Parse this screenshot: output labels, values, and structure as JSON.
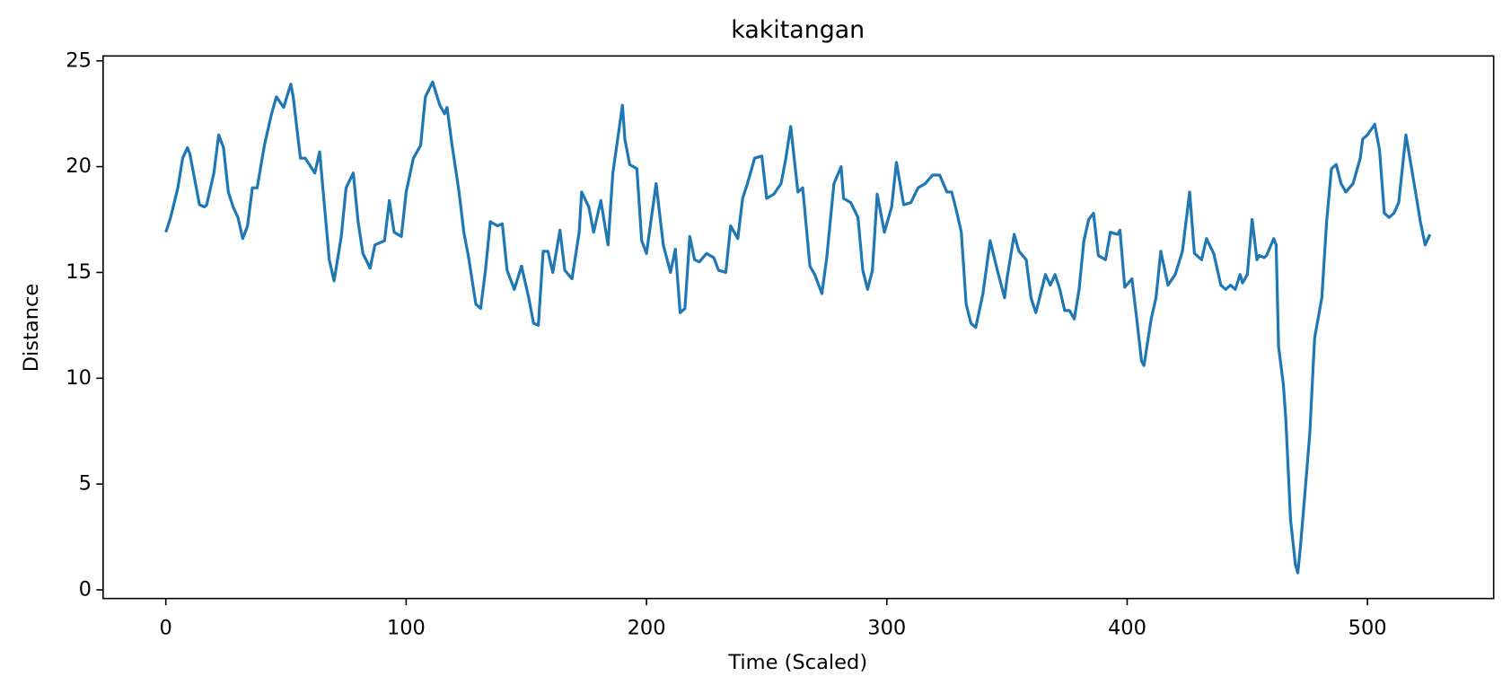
{
  "chart_data": {
    "type": "line",
    "title": "kakitangan",
    "x_label": "Time (Scaled)",
    "y_label": "Distance",
    "color": "#1f77b4",
    "x": [
      0,
      2,
      5,
      7,
      9,
      10,
      12,
      14,
      16,
      17,
      20,
      22,
      24,
      26,
      28,
      30,
      32,
      34,
      36,
      38,
      41,
      44,
      46,
      49,
      52,
      53,
      56,
      58,
      62,
      64,
      68,
      70,
      73,
      75,
      78,
      80,
      82,
      85,
      87,
      91,
      93,
      95,
      98,
      100,
      103,
      106,
      108,
      111,
      114,
      116,
      117,
      119,
      122,
      124,
      126,
      129,
      131,
      133,
      135,
      138,
      140,
      142,
      145,
      148,
      151,
      153,
      155,
      157,
      159,
      161,
      164,
      166,
      169,
      172,
      173,
      176,
      178,
      181,
      184,
      186,
      190,
      191,
      193,
      196,
      198,
      200,
      204,
      207,
      210,
      212,
      214,
      216,
      218,
      220,
      222,
      225,
      228,
      230,
      233,
      235,
      238,
      240,
      242,
      245,
      248,
      250,
      253,
      256,
      258,
      260,
      263,
      265,
      268,
      270,
      273,
      275,
      278,
      281,
      282,
      285,
      288,
      290,
      292,
      294,
      296,
      299,
      302,
      304,
      307,
      310,
      313,
      316,
      319,
      322,
      325,
      327,
      329,
      331,
      333,
      335,
      337,
      340,
      343,
      346,
      349,
      350,
      353,
      355,
      358,
      360,
      362,
      366,
      368,
      370,
      372,
      374,
      376,
      378,
      380,
      382,
      384,
      386,
      388,
      391,
      393,
      396,
      397,
      399,
      402,
      404,
      406,
      407,
      410,
      412,
      414,
      417,
      420,
      423,
      426,
      428,
      431,
      433,
      436,
      439,
      441,
      443,
      445,
      447,
      448,
      450,
      452,
      454,
      455,
      457,
      458,
      461,
      462,
      463,
      465,
      466,
      468,
      470,
      471,
      472,
      474,
      476,
      478,
      481,
      483,
      485,
      487,
      489,
      491,
      494,
      497,
      498,
      500,
      503,
      505,
      507,
      509,
      511,
      513,
      516,
      520,
      522,
      524,
      526
    ],
    "values": [
      16.9,
      17.6,
      19.0,
      20.4,
      20.9,
      20.6,
      19.4,
      18.2,
      18.1,
      18.2,
      19.7,
      21.5,
      20.9,
      18.8,
      18.1,
      17.6,
      16.6,
      17.2,
      19.0,
      19.0,
      21.0,
      22.5,
      23.3,
      22.8,
      23.9,
      23.3,
      20.4,
      20.4,
      19.7,
      20.7,
      15.6,
      14.6,
      16.7,
      19.0,
      19.7,
      17.4,
      15.9,
      15.2,
      16.3,
      16.5,
      18.4,
      16.9,
      16.7,
      18.8,
      20.4,
      21.0,
      23.3,
      24.0,
      22.9,
      22.5,
      22.8,
      21.1,
      18.8,
      16.9,
      15.7,
      13.5,
      13.3,
      15.1,
      17.4,
      17.2,
      17.3,
      15.1,
      14.2,
      15.3,
      13.8,
      12.6,
      12.5,
      16.0,
      16.0,
      15.0,
      17.0,
      15.1,
      14.7,
      16.9,
      18.8,
      18.1,
      16.9,
      18.4,
      16.3,
      19.7,
      22.9,
      21.3,
      20.1,
      19.9,
      16.5,
      15.9,
      19.2,
      16.3,
      15.0,
      16.1,
      13.1,
      13.3,
      16.7,
      15.6,
      15.5,
      15.9,
      15.7,
      15.1,
      15.0,
      17.2,
      16.6,
      18.5,
      19.2,
      20.4,
      20.5,
      18.5,
      18.7,
      19.2,
      20.4,
      21.9,
      18.8,
      19.0,
      15.3,
      14.9,
      14.0,
      15.7,
      19.2,
      20.0,
      18.5,
      18.3,
      17.6,
      15.1,
      14.2,
      15.1,
      18.7,
      16.9,
      18.1,
      20.2,
      18.2,
      18.3,
      19.0,
      19.2,
      19.6,
      19.6,
      18.8,
      18.8,
      17.9,
      16.9,
      13.5,
      12.6,
      12.4,
      14.0,
      16.5,
      15.1,
      13.8,
      14.7,
      16.8,
      16.0,
      15.6,
      13.8,
      13.1,
      14.9,
      14.4,
      14.9,
      14.2,
      13.2,
      13.2,
      12.8,
      14.2,
      16.5,
      17.5,
      17.8,
      15.8,
      15.6,
      16.9,
      16.8,
      17.0,
      14.3,
      14.7,
      12.8,
      10.8,
      10.6,
      12.8,
      13.8,
      16.0,
      14.4,
      14.9,
      16.0,
      18.8,
      15.9,
      15.6,
      16.6,
      15.9,
      14.4,
      14.2,
      14.4,
      14.2,
      14.9,
      14.5,
      14.9,
      17.5,
      15.6,
      15.8,
      15.7,
      15.8,
      16.6,
      16.3,
      11.5,
      9.7,
      8.1,
      3.3,
      1.2,
      0.8,
      1.9,
      4.6,
      7.4,
      11.9,
      13.8,
      17.4,
      19.9,
      20.1,
      19.2,
      18.8,
      19.2,
      20.4,
      21.3,
      21.5,
      22.0,
      20.8,
      17.8,
      17.6,
      17.8,
      18.3,
      21.5,
      18.8,
      17.4,
      16.3,
      16.8
    ],
    "xlim": [
      -26.1,
      552.5
    ],
    "ylim": [
      -0.41,
      25.23
    ],
    "xticks": [
      0,
      100,
      200,
      300,
      400,
      500
    ],
    "yticks": [
      0,
      5,
      10,
      15,
      20,
      25
    ]
  }
}
